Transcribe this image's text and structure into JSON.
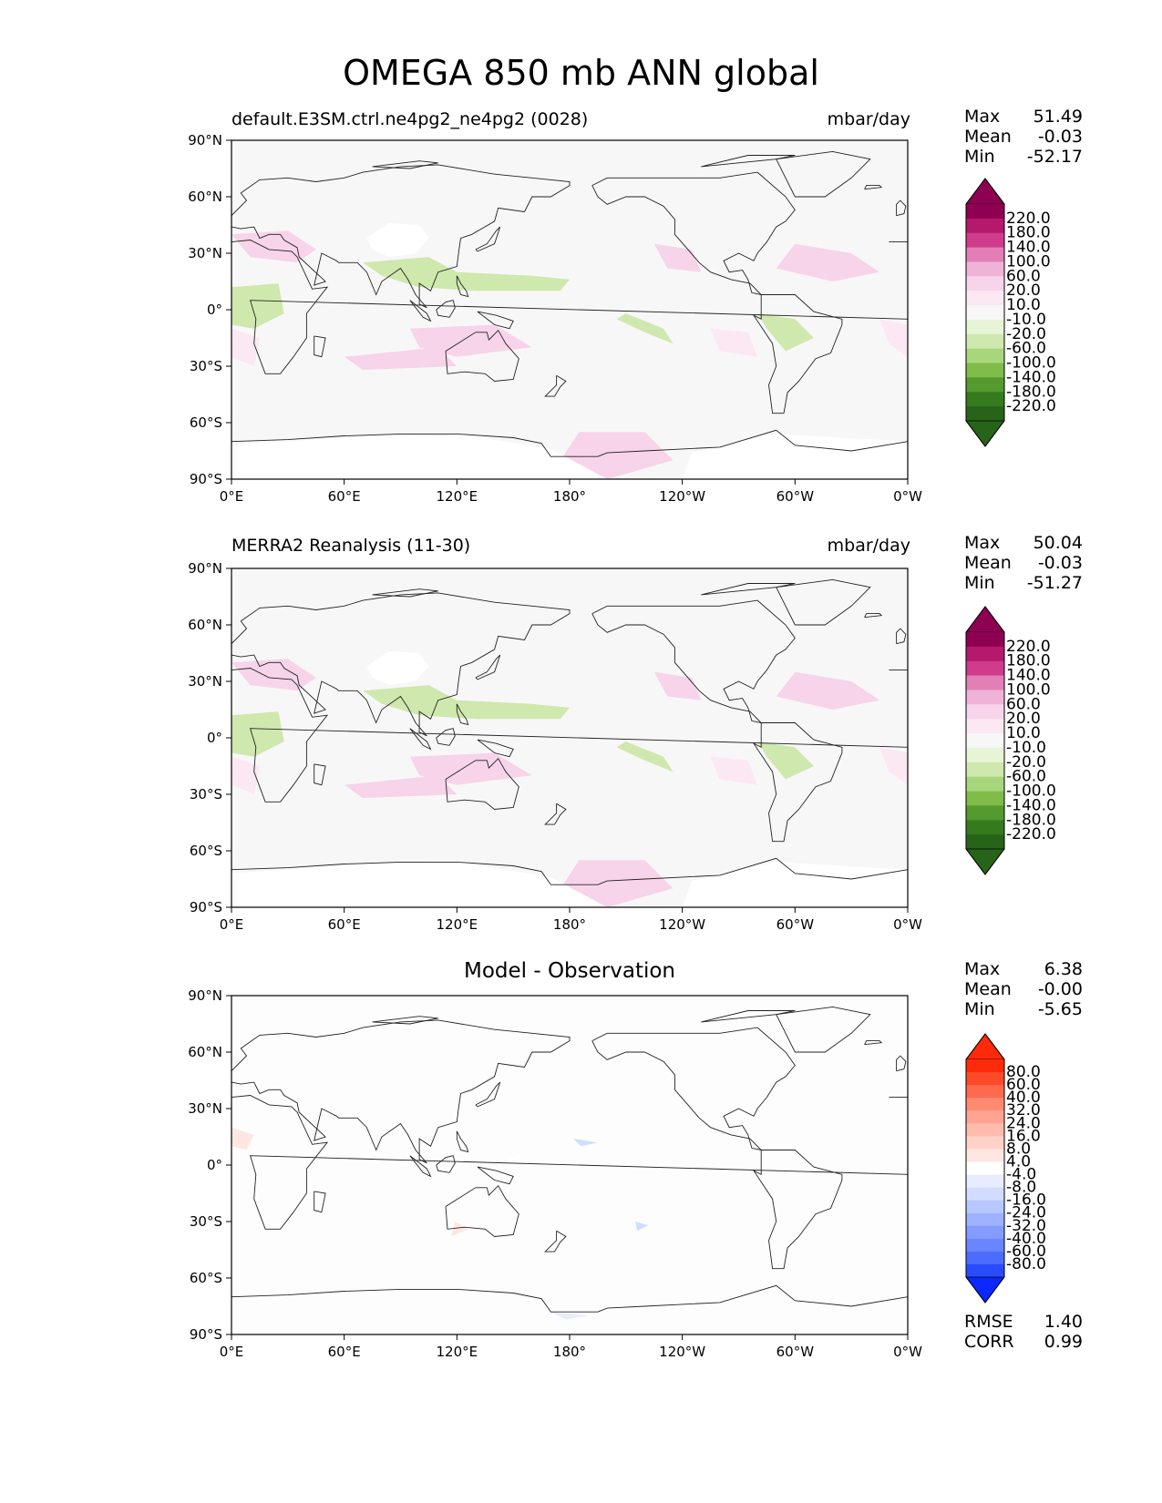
{
  "title": "OMEGA 850 mb ANN global",
  "chart_data": [
    {
      "type": "heatmap",
      "title_left": "default.E3SM.ctrl.ne4pg2_ne4pg2 (0028)",
      "title_right": "mbar/day",
      "stats": [
        {
          "label": "Max",
          "value": "51.49"
        },
        {
          "label": "Mean",
          "value": "-0.03"
        },
        {
          "label": "Min",
          "value": "-52.17"
        }
      ],
      "x_ticks": [
        "0°E",
        "60°E",
        "120°E",
        "180°",
        "120°W",
        "60°W",
        "0°W"
      ],
      "y_ticks": [
        "90°N",
        "60°N",
        "30°N",
        "0°",
        "30°S",
        "60°S",
        "90°S"
      ],
      "xlim": [
        0,
        360
      ],
      "ylim": [
        -90,
        90
      ],
      "colorbar": {
        "labels": [
          "220.0",
          "180.0",
          "140.0",
          "100.0",
          "60.0",
          "20.0",
          "10.0",
          "-10.0",
          "-20.0",
          "-60.0",
          "-100.0",
          "-140.0",
          "-180.0",
          "-220.0"
        ],
        "colors": [
          "#8e0152",
          "#b4196b",
          "#cf3c8c",
          "#e27fb7",
          "#f0b3d8",
          "#f7d4ea",
          "#fbe8f3",
          "#f7f7f7",
          "#e8f4d6",
          "#cfe8ad",
          "#a8d67c",
          "#7fbc4a",
          "#549a2f",
          "#357b1e",
          "#276419"
        ],
        "top_color": "#8e0152",
        "bottom_color": "#276419"
      }
    },
    {
      "type": "heatmap",
      "title_left": "MERRA2 Reanalysis (11-30)",
      "title_right": "mbar/day",
      "stats": [
        {
          "label": "Max",
          "value": "50.04"
        },
        {
          "label": "Mean",
          "value": "-0.03"
        },
        {
          "label": "Min",
          "value": "-51.27"
        }
      ],
      "x_ticks": [
        "0°E",
        "60°E",
        "120°E",
        "180°",
        "120°W",
        "60°W",
        "0°W"
      ],
      "y_ticks": [
        "90°N",
        "60°N",
        "30°N",
        "0°",
        "30°S",
        "60°S",
        "90°S"
      ],
      "xlim": [
        0,
        360
      ],
      "ylim": [
        -90,
        90
      ],
      "colorbar": {
        "labels": [
          "220.0",
          "180.0",
          "140.0",
          "100.0",
          "60.0",
          "20.0",
          "10.0",
          "-10.0",
          "-20.0",
          "-60.0",
          "-100.0",
          "-140.0",
          "-180.0",
          "-220.0"
        ],
        "colors": [
          "#8e0152",
          "#b4196b",
          "#cf3c8c",
          "#e27fb7",
          "#f0b3d8",
          "#f7d4ea",
          "#fbe8f3",
          "#f7f7f7",
          "#e8f4d6",
          "#cfe8ad",
          "#a8d67c",
          "#7fbc4a",
          "#549a2f",
          "#357b1e",
          "#276419"
        ],
        "top_color": "#8e0152",
        "bottom_color": "#276419"
      }
    },
    {
      "type": "heatmap",
      "title_center": "Model - Observation",
      "stats": [
        {
          "label": "Max",
          "value": "6.38"
        },
        {
          "label": "Mean",
          "value": "-0.00"
        },
        {
          "label": "Min",
          "value": "-5.65"
        }
      ],
      "metrics": [
        {
          "label": "RMSE",
          "value": "1.40"
        },
        {
          "label": "CORR",
          "value": "0.99"
        }
      ],
      "x_ticks": [
        "0°E",
        "60°E",
        "120°E",
        "180°",
        "120°W",
        "60°W",
        "0°W"
      ],
      "y_ticks": [
        "90°N",
        "60°N",
        "30°N",
        "0°",
        "30°S",
        "60°S",
        "90°S"
      ],
      "xlim": [
        0,
        360
      ],
      "ylim": [
        -90,
        90
      ],
      "colorbar": {
        "labels": [
          "80.0",
          "60.0",
          "40.0",
          "32.0",
          "24.0",
          "16.0",
          "8.0",
          "4.0",
          "-4.0",
          "-8.0",
          "-16.0",
          "-24.0",
          "-32.0",
          "-40.0",
          "-60.0",
          "-80.0"
        ],
        "colors": [
          "#ff2a0a",
          "#ff4a2a",
          "#ff6a4e",
          "#ff8a72",
          "#ffa492",
          "#ffbcae",
          "#ffd2c8",
          "#ffe6e0",
          "#ffffff",
          "#e8ecff",
          "#d2dcff",
          "#b8c8ff",
          "#9eb2ff",
          "#849cff",
          "#6a86ff",
          "#4c6cff",
          "#2a4cff"
        ],
        "top_color": "#ff2a0a",
        "bottom_color": "#0a28ff"
      }
    }
  ]
}
